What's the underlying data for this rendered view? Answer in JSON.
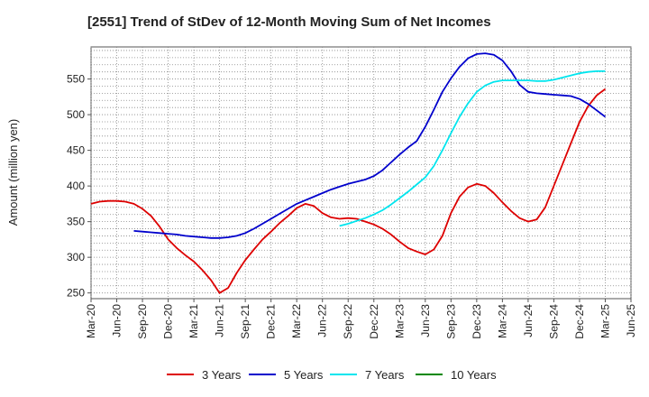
{
  "chart_data": {
    "type": "line",
    "title": "[2551]  Trend of StDev of 12-Month Moving Sum of Net Incomes",
    "ylabel": "Amount (million yen)",
    "xlabel": "",
    "ylim": [
      242,
      595
    ],
    "yticks": [
      250,
      300,
      350,
      400,
      450,
      500,
      550
    ],
    "grid": true,
    "legend_position": "bottom",
    "x_tick_labels": [
      "Mar-20",
      "Jun-20",
      "Sep-20",
      "Dec-20",
      "Mar-21",
      "Jun-21",
      "Sep-21",
      "Dec-21",
      "Mar-22",
      "Jun-22",
      "Sep-22",
      "Dec-22",
      "Mar-23",
      "Jun-23",
      "Sep-23",
      "Dec-23",
      "Mar-24",
      "Jun-24",
      "Sep-24",
      "Dec-24",
      "Mar-25",
      "Jun-25"
    ],
    "series": [
      {
        "name": "3 Years",
        "color": "#dd0000",
        "x": [
          "Mar-20",
          "Apr-20",
          "May-20",
          "Jun-20",
          "Jul-20",
          "Aug-20",
          "Sep-20",
          "Oct-20",
          "Nov-20",
          "Dec-20",
          "Jan-21",
          "Feb-21",
          "Mar-21",
          "Apr-21",
          "May-21",
          "Jun-21",
          "Jul-21",
          "Aug-21",
          "Sep-21",
          "Oct-21",
          "Nov-21",
          "Dec-21",
          "Jan-22",
          "Feb-22",
          "Mar-22",
          "Apr-22",
          "May-22",
          "Jun-22",
          "Jul-22",
          "Aug-22",
          "Sep-22",
          "Oct-22",
          "Nov-22",
          "Dec-22",
          "Jan-23",
          "Feb-23",
          "Mar-23",
          "Apr-23",
          "May-23",
          "Jun-23",
          "Jul-23",
          "Aug-23",
          "Sep-23",
          "Oct-23",
          "Nov-23",
          "Dec-23",
          "Jan-24",
          "Feb-24",
          "Mar-24",
          "Apr-24",
          "May-24",
          "Jun-24",
          "Jul-24",
          "Aug-24",
          "Sep-24",
          "Oct-24",
          "Nov-24",
          "Dec-24",
          "Jan-25",
          "Feb-25",
          "Mar-25"
        ],
        "values": [
          375,
          378,
          379,
          379,
          378,
          375,
          368,
          358,
          343,
          325,
          313,
          303,
          294,
          282,
          268,
          250,
          257,
          278,
          296,
          311,
          325,
          336,
          348,
          358,
          369,
          375,
          372,
          362,
          356,
          354,
          355,
          354,
          350,
          346,
          340,
          332,
          322,
          313,
          308,
          304,
          311,
          330,
          362,
          385,
          398,
          403,
          400,
          390,
          377,
          365,
          355,
          350,
          353,
          370,
          400,
          430,
          460,
          490,
          512,
          527,
          536
        ]
      },
      {
        "name": "5 Years",
        "color": "#0000cc",
        "x": [
          "Aug-20",
          "Sep-20",
          "Oct-20",
          "Nov-20",
          "Dec-20",
          "Jan-21",
          "Feb-21",
          "Mar-21",
          "Apr-21",
          "May-21",
          "Jun-21",
          "Jul-21",
          "Aug-21",
          "Sep-21",
          "Oct-21",
          "Nov-21",
          "Dec-21",
          "Jan-22",
          "Feb-22",
          "Mar-22",
          "Apr-22",
          "May-22",
          "Jun-22",
          "Jul-22",
          "Aug-22",
          "Sep-22",
          "Oct-22",
          "Nov-22",
          "Dec-22",
          "Jan-23",
          "Feb-23",
          "Mar-23",
          "Apr-23",
          "May-23",
          "Jun-23",
          "Jul-23",
          "Aug-23",
          "Sep-23",
          "Oct-23",
          "Nov-23",
          "Dec-23",
          "Jan-24",
          "Feb-24",
          "Mar-24",
          "Apr-24",
          "May-24",
          "Jun-24",
          "Jul-24",
          "Aug-24",
          "Sep-24",
          "Oct-24",
          "Nov-24",
          "Dec-24",
          "Jan-25",
          "Feb-25",
          "Mar-25"
        ],
        "values": [
          337,
          336,
          335,
          334,
          333,
          332,
          330,
          329,
          328,
          327,
          327,
          328,
          330,
          334,
          340,
          347,
          354,
          361,
          368,
          375,
          380,
          385,
          390,
          395,
          399,
          403,
          406,
          409,
          414,
          422,
          433,
          444,
          454,
          463,
          483,
          507,
          532,
          551,
          567,
          579,
          585,
          586,
          584,
          576,
          561,
          542,
          532,
          530,
          529,
          528,
          527,
          526,
          522,
          515,
          506,
          497
        ]
      },
      {
        "name": "7 Years",
        "color": "#00e5ee",
        "x": [
          "Aug-22",
          "Sep-22",
          "Oct-22",
          "Nov-22",
          "Dec-22",
          "Jan-23",
          "Feb-23",
          "Mar-23",
          "Apr-23",
          "May-23",
          "Jun-23",
          "Jul-23",
          "Aug-23",
          "Sep-23",
          "Oct-23",
          "Nov-23",
          "Dec-23",
          "Jan-24",
          "Feb-24",
          "Mar-24",
          "Apr-24",
          "May-24",
          "Jun-24",
          "Jul-24",
          "Aug-24",
          "Sep-24",
          "Oct-24",
          "Nov-24",
          "Dec-24",
          "Jan-25",
          "Feb-25",
          "Mar-25"
        ],
        "values": [
          344,
          347,
          351,
          355,
          360,
          366,
          374,
          383,
          392,
          402,
          412,
          428,
          450,
          474,
          497,
          516,
          532,
          541,
          546,
          548,
          548,
          548,
          548,
          547,
          547,
          549,
          552,
          555,
          558,
          560,
          561,
          561
        ]
      },
      {
        "name": "10 Years",
        "color": "#008800",
        "x": [],
        "values": []
      }
    ]
  }
}
